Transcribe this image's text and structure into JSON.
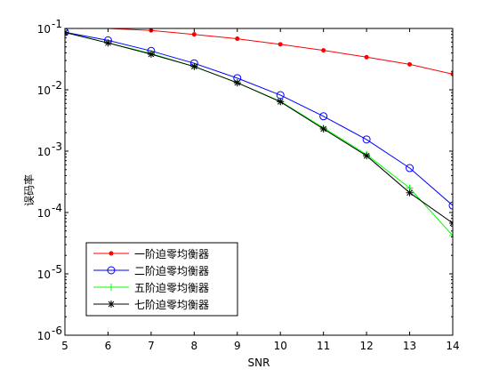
{
  "chart_data": {
    "type": "line",
    "title": "",
    "xlabel": "SNR",
    "ylabel": "误码率",
    "xlim": [
      5,
      14
    ],
    "ylim": [
      1e-06,
      0.1
    ],
    "yscale": "log",
    "grid": false,
    "legend_position": "bottom-left",
    "x": [
      5,
      6,
      7,
      8,
      9,
      10,
      11,
      12,
      13,
      14
    ],
    "x_ticks": [
      "5",
      "6",
      "7",
      "8",
      "9",
      "10",
      "11",
      "12",
      "13",
      "14"
    ],
    "y_ticks": [
      {
        "base": "10",
        "exp": "-6",
        "value": 1e-06
      },
      {
        "base": "10",
        "exp": "-5",
        "value": 1e-05
      },
      {
        "base": "10",
        "exp": "-4",
        "value": 0.0001
      },
      {
        "base": "10",
        "exp": "-3",
        "value": 0.001
      },
      {
        "base": "10",
        "exp": "-2",
        "value": 0.01
      },
      {
        "base": "10",
        "exp": "-1",
        "value": 0.1
      }
    ],
    "series": [
      {
        "name": "一阶迫零均衡器",
        "color": "#ff0000",
        "marker": "dot",
        "values": [
          0.12,
          0.105,
          0.093,
          0.08,
          0.068,
          0.055,
          0.044,
          0.034,
          0.026,
          0.018
        ]
      },
      {
        "name": "二阶迫零均衡器",
        "color": "#0000ff",
        "marker": "circle",
        "values": [
          0.087,
          0.064,
          0.043,
          0.027,
          0.0155,
          0.0082,
          0.0037,
          0.00155,
          0.00053,
          0.00013
        ]
      },
      {
        "name": "五阶迫零均衡器",
        "color": "#00ff00",
        "marker": "plus",
        "values": [
          0.086,
          0.058,
          0.039,
          0.024,
          0.013,
          0.0065,
          0.0024,
          0.00088,
          0.00025,
          4.2e-05
        ]
      },
      {
        "name": "七阶迫零均衡器",
        "color": "#000000",
        "marker": "star",
        "values": [
          0.086,
          0.058,
          0.038,
          0.024,
          0.013,
          0.0064,
          0.0023,
          0.00084,
          0.00021,
          6.7e-05
        ]
      }
    ]
  }
}
